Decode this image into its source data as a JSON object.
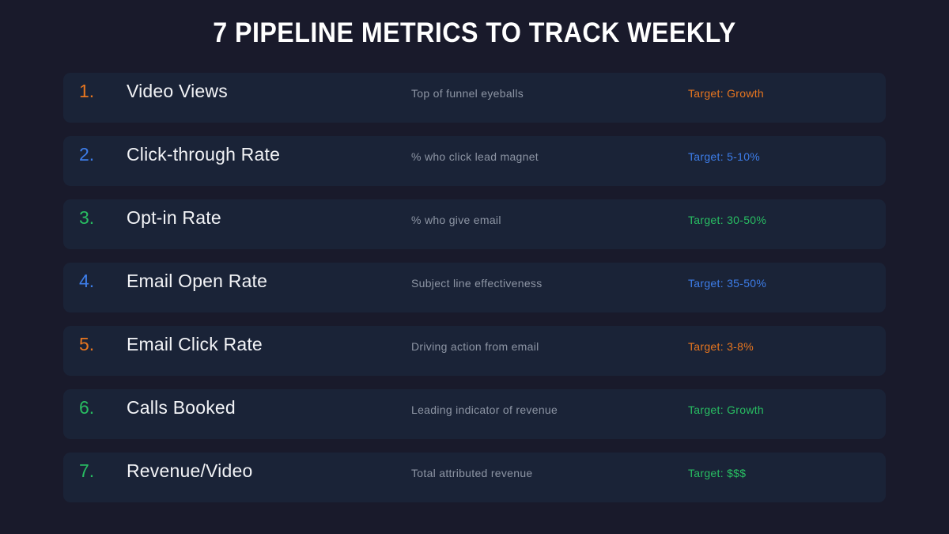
{
  "title": "7 PIPELINE METRICS TO TRACK WEEKLY",
  "colors": {
    "orange": "#e8761f",
    "blue": "#3d7de9",
    "green": "#28bd62",
    "background": "#191a2b",
    "card": "#1a2337",
    "name_text": "#f2f3f6",
    "desc_text": "#8d95a4"
  },
  "rows": [
    {
      "num": "1.",
      "name": "Video Views",
      "desc": "Top of funnel eyeballs",
      "target": "Target: Growth",
      "color": "orange"
    },
    {
      "num": "2.",
      "name": "Click-through Rate",
      "desc": "% who click lead magnet",
      "target": "Target: 5-10%",
      "color": "blue"
    },
    {
      "num": "3.",
      "name": "Opt-in Rate",
      "desc": "% who give email",
      "target": "Target: 30-50%",
      "color": "green"
    },
    {
      "num": "4.",
      "name": "Email Open Rate",
      "desc": "Subject line effectiveness",
      "target": "Target: 35-50%",
      "color": "blue"
    },
    {
      "num": "5.",
      "name": "Email Click Rate",
      "desc": "Driving action from email",
      "target": "Target: 3-8%",
      "color": "orange"
    },
    {
      "num": "6.",
      "name": "Calls Booked",
      "desc": "Leading indicator of revenue",
      "target": "Target: Growth",
      "color": "green"
    },
    {
      "num": "7.",
      "name": "Revenue/Video",
      "desc": "Total attributed revenue",
      "target": "Target: $$$",
      "color": "green"
    }
  ]
}
